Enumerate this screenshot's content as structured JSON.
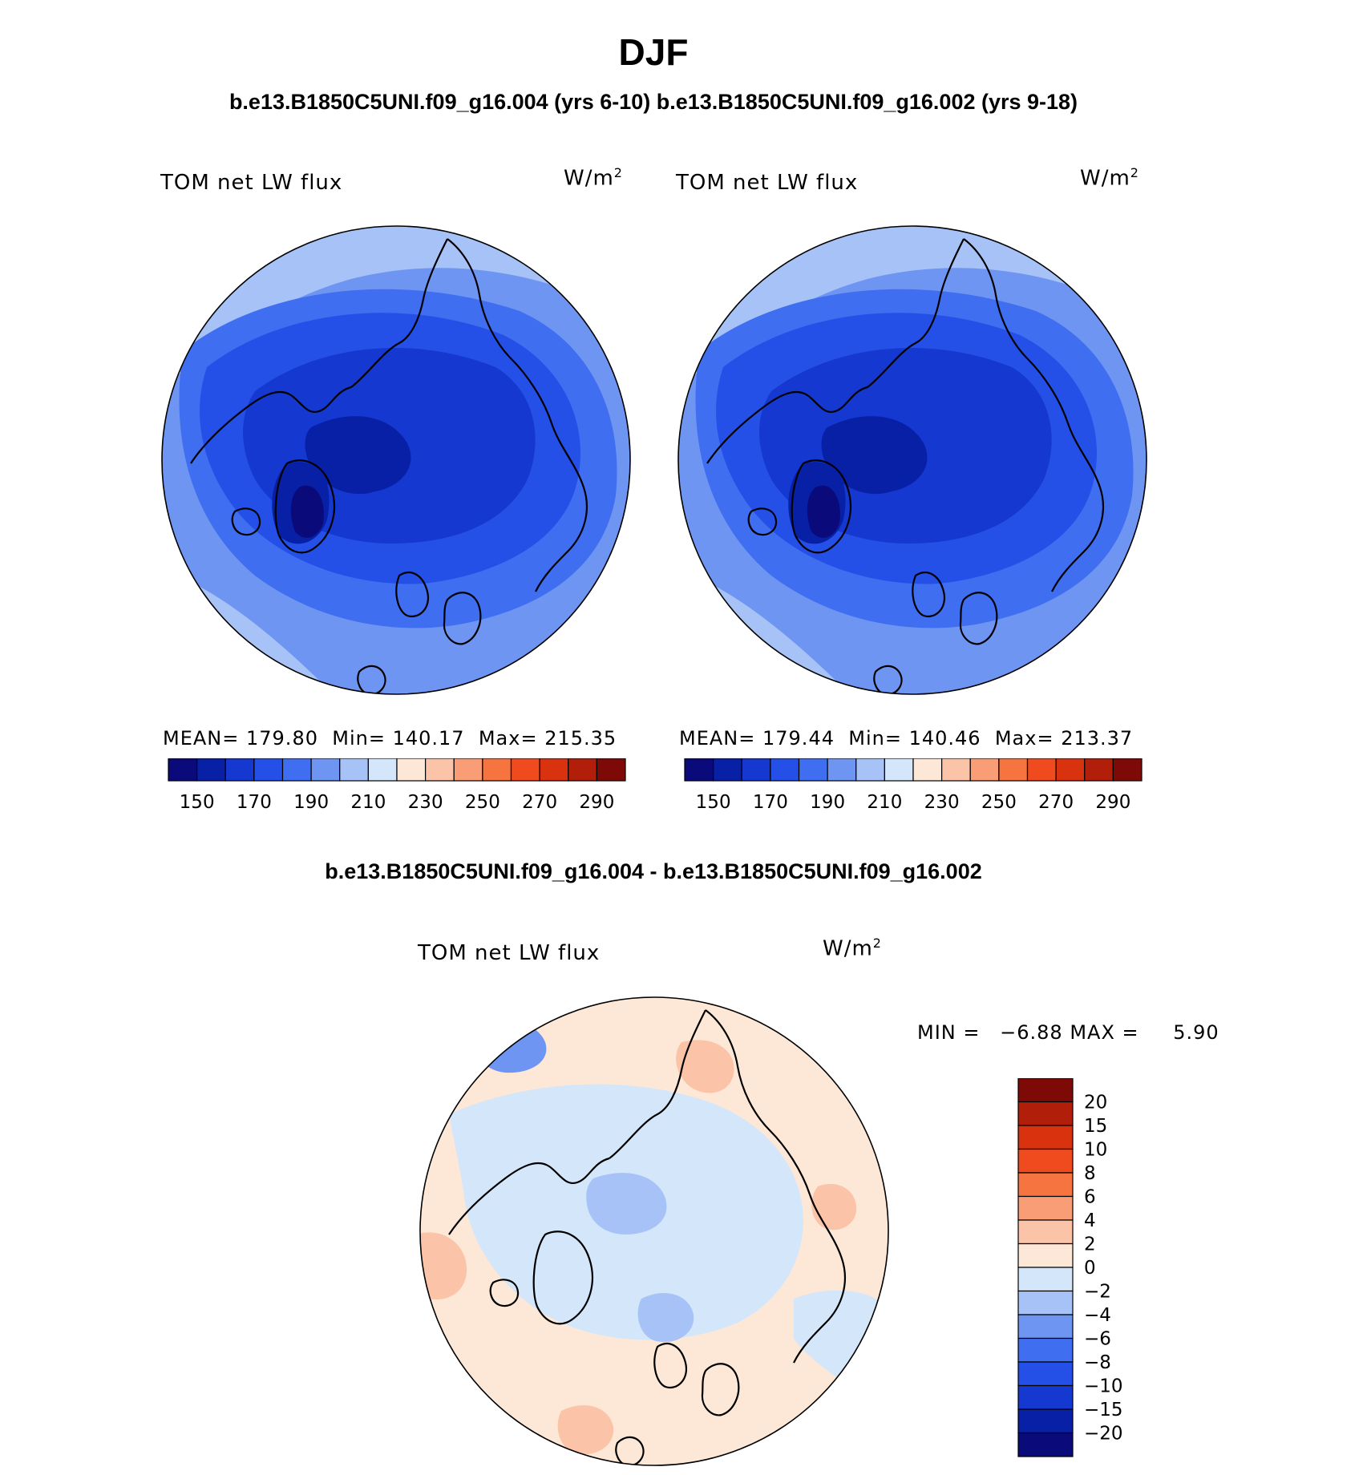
{
  "page_title": "DJF",
  "top_header": "b.e13.B1850C5UNI.f09_g16.004 (yrs 6-10) b.e13.B1850C5UNI.f09_g16.002 (yrs 9-18)",
  "diff_header": "b.e13.B1850C5UNI.f09_g16.004 - b.e13.B1850C5UNI.f09_g16.002",
  "chart_data": [
    {
      "type": "heatmap",
      "projection": "north-polar-stereographic",
      "case": "b.e13.B1850C5UNI.f09_g16.004 (yrs 6-10)",
      "variable_label": "TOM net LW flux",
      "units_label": "W/m",
      "units_sup": "2",
      "stats": {
        "mean_label": "MEAN=",
        "mean": "179.80",
        "min_label": "Min=",
        "min": "140.17",
        "max_label": "Max=",
        "max": "215.35"
      },
      "colorbar": {
        "levels": [
          140,
          150,
          160,
          170,
          180,
          190,
          200,
          210,
          220,
          230,
          240,
          250,
          260,
          270,
          280,
          290
        ],
        "tick_labels": [
          "150",
          "170",
          "190",
          "210",
          "230",
          "250",
          "270",
          "290"
        ],
        "colors": [
          "#0a0a7a",
          "#0820a6",
          "#1438d0",
          "#2550e8",
          "#3f6ef0",
          "#6e95f2",
          "#a6c2f7",
          "#d4e6fa",
          "#fde8d8",
          "#fbc4a8",
          "#f89d76",
          "#f5743f",
          "#ef4b1e",
          "#d8320e",
          "#b11f0a",
          "#7d0a06"
        ]
      }
    },
    {
      "type": "heatmap",
      "projection": "north-polar-stereographic",
      "case": "b.e13.B1850C5UNI.f09_g16.002 (yrs 9-18)",
      "variable_label": "TOM net LW flux",
      "units_label": "W/m",
      "units_sup": "2",
      "stats": {
        "mean_label": "MEAN=",
        "mean": "179.44",
        "min_label": "Min=",
        "min": "140.46",
        "max_label": "Max=",
        "max": "213.37"
      },
      "colorbar": {
        "levels": [
          140,
          150,
          160,
          170,
          180,
          190,
          200,
          210,
          220,
          230,
          240,
          250,
          260,
          270,
          280,
          290
        ],
        "tick_labels": [
          "150",
          "170",
          "190",
          "210",
          "230",
          "250",
          "270",
          "290"
        ],
        "colors": [
          "#0a0a7a",
          "#0820a6",
          "#1438d0",
          "#2550e8",
          "#3f6ef0",
          "#6e95f2",
          "#a6c2f7",
          "#d4e6fa",
          "#fde8d8",
          "#fbc4a8",
          "#f89d76",
          "#f5743f",
          "#ef4b1e",
          "#d8320e",
          "#b11f0a",
          "#7d0a06"
        ]
      }
    },
    {
      "type": "heatmap",
      "projection": "north-polar-stereographic",
      "case": "difference",
      "variable_label": "TOM net LW flux",
      "units_label": "W/m",
      "units_sup": "2",
      "stats": {
        "min_label": "MIN =",
        "min": "−6.88",
        "max_label": "MAX =",
        "max": "5.90"
      },
      "colorbar": {
        "levels": [
          20,
          15,
          10,
          8,
          6,
          4,
          2,
          0,
          -2,
          -4,
          -6,
          -8,
          -10,
          -15,
          -20
        ],
        "tick_labels": [
          "20",
          "15",
          "10",
          "8",
          "6",
          "4",
          "2",
          "0",
          "−2",
          "−4",
          "−6",
          "−8",
          "−10",
          "−15",
          "−20"
        ],
        "colors": [
          "#7d0a06",
          "#b11f0a",
          "#d8320e",
          "#ef4b1e",
          "#f5743f",
          "#f89d76",
          "#fbc4a8",
          "#fde8d8",
          "#d4e6fa",
          "#a6c2f7",
          "#6e95f2",
          "#3f6ef0",
          "#2550e8",
          "#1438d0",
          "#0820a6",
          "#0a0a7a"
        ]
      }
    }
  ]
}
